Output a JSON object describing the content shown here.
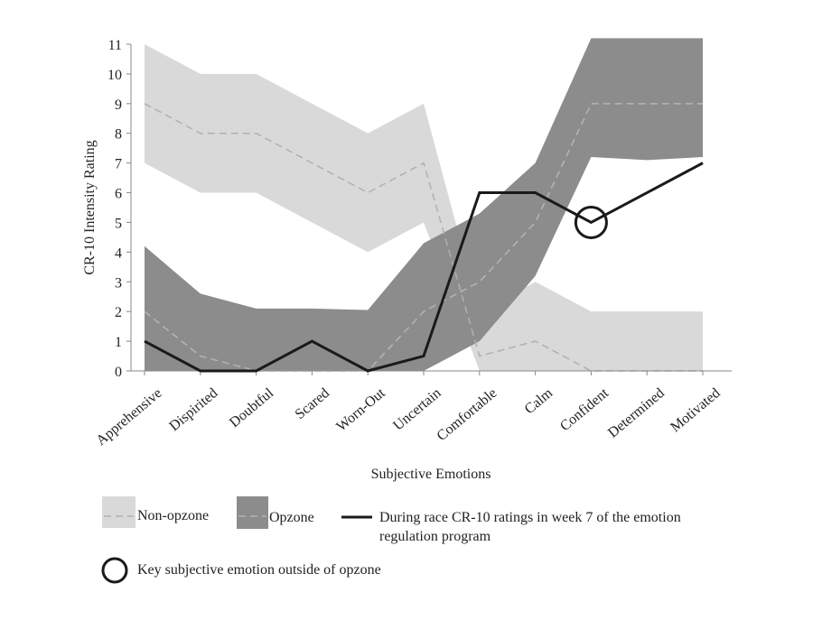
{
  "chart_data": {
    "type": "band_line",
    "x_label": "Subjective Emotions",
    "y_label": "CR-10 Intensity Rating",
    "categories": [
      "Apprehensive",
      "Dispirited",
      "Doubtful",
      "Scared",
      "Worn-Out",
      "Uncertain",
      "Comfortable",
      "Calm",
      "Confident",
      "Determined",
      "Motivated"
    ],
    "ylim": [
      0,
      11
    ],
    "yticks": [
      0,
      1,
      2,
      3,
      4,
      5,
      6,
      7,
      8,
      9,
      10,
      11
    ],
    "series": [
      {
        "name": "Non-opzone",
        "type": "band",
        "color": "#d9d9d9",
        "mean_color": "#b0b0b0",
        "values": [
          9,
          8,
          8,
          7,
          6,
          7,
          0.5,
          1,
          0,
          0,
          0
        ],
        "upper": [
          11,
          10,
          10,
          9,
          8,
          9,
          2,
          3,
          2,
          2,
          2
        ],
        "lower": [
          7,
          6,
          6,
          5,
          4,
          5,
          0,
          0,
          0,
          0,
          0
        ]
      },
      {
        "name": "Opzone",
        "type": "band",
        "color": "#8c8c8c",
        "mean_color": "#b5b5b5",
        "values": [
          2,
          0.5,
          0,
          0,
          0,
          2,
          3,
          5,
          9,
          9,
          9
        ],
        "upper": [
          4.2,
          2.6,
          2.1,
          2.1,
          2.05,
          4.3,
          5.3,
          7,
          11.2,
          11.2,
          11.2
        ],
        "lower": [
          0,
          0,
          0,
          0,
          0,
          0,
          1,
          3.2,
          7.2,
          7.1,
          7.2
        ]
      },
      {
        "name": "During race CR-10 ratings in week 7 of the emotion regulation program",
        "type": "line",
        "color": "#1a1a1a",
        "values": [
          1,
          0,
          0,
          1,
          0,
          0.5,
          6,
          6,
          5,
          6,
          7
        ]
      }
    ],
    "annotation": {
      "label": "Key subjective emotion outside of opzone",
      "category": "Confident"
    }
  }
}
